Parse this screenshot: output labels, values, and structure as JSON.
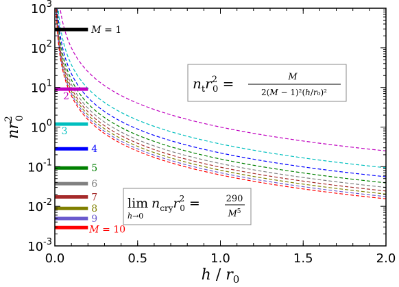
{
  "chart_data": {
    "type": "line",
    "xlabel": "h / r0",
    "ylabel": "nr0²",
    "xlim": [
      0.0,
      2.0
    ],
    "ylim_log10": [
      -3,
      3
    ],
    "yscale": "log",
    "x_ticks": [
      "0.0",
      "0.5",
      "1.0",
      "1.5",
      "2.0"
    ],
    "y_ticks": [
      {
        "base": "10",
        "exp": "-3"
      },
      {
        "base": "10",
        "exp": "-2"
      },
      {
        "base": "10",
        "exp": "-1"
      },
      {
        "base": "10",
        "exp": "0"
      },
      {
        "base": "10",
        "exp": "1"
      },
      {
        "base": "10",
        "exp": "2"
      },
      {
        "base": "10",
        "exp": "3"
      }
    ],
    "series": [
      {
        "M": 2,
        "color": "#bf00bf",
        "style": "dashed"
      },
      {
        "M": 3,
        "color": "#00bfbf",
        "style": "dashed"
      },
      {
        "M": 4,
        "color": "#0000ff",
        "style": "dashed"
      },
      {
        "M": 5,
        "color": "#008000",
        "style": "dashed"
      },
      {
        "M": 6,
        "color": "#808080",
        "style": "dashed"
      },
      {
        "M": 7,
        "color": "#a52a2a",
        "style": "dashed"
      },
      {
        "M": 8,
        "color": "#808000",
        "style": "dashed"
      },
      {
        "M": 9,
        "color": "#6a5acd",
        "style": "dashed"
      },
      {
        "M": 10,
        "color": "#ff0000",
        "style": "dashed"
      }
    ],
    "crystal_levels": [
      {
        "M": 1,
        "value": 290,
        "color": "#000000",
        "label": "M = 1"
      },
      {
        "M": 2,
        "value": 9.06,
        "color": "#bf00bf",
        "label": "2"
      },
      {
        "M": 3,
        "value": 1.19,
        "color": "#00bfbf",
        "label": "3"
      },
      {
        "M": 4,
        "value": 0.283,
        "color": "#0000ff",
        "label": "4"
      },
      {
        "M": 5,
        "value": 0.0928,
        "color": "#008000",
        "label": "5"
      },
      {
        "M": 6,
        "value": 0.0373,
        "color": "#808080",
        "label": "6"
      },
      {
        "M": 7,
        "value": 0.0172,
        "color": "#a52a2a",
        "label": "7"
      },
      {
        "M": 8,
        "value": 0.00885,
        "color": "#808000",
        "label": "8"
      },
      {
        "M": 9,
        "value": 0.00491,
        "color": "#6a5acd",
        "label": "9"
      },
      {
        "M": 10,
        "value": 0.0029,
        "color": "#ff0000",
        "label": "M = 10"
      }
    ],
    "crystal_x_range": [
      0.0,
      0.2
    ],
    "annotations": {
      "top": {
        "lhs": "nₜr₀² =",
        "num": "M",
        "den": "2(M − 1)²(h/r₀)²"
      },
      "bottom": {
        "lhs_lim": "lim",
        "lhs_sub": "h→0",
        "lhs_body": "n_cry r₀² =",
        "num": "290",
        "den": "M⁵"
      }
    }
  }
}
